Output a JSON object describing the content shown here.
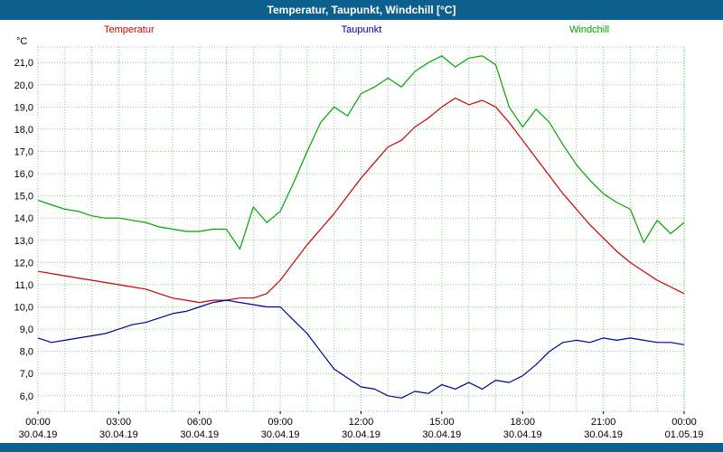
{
  "window": {
    "title": "Temperatur, Taupunkt, Windchill [°C]"
  },
  "colors": {
    "titlebar": "#0d5f8e",
    "grid": "#8cc88c",
    "plot_background": "#ffffff",
    "axis_text": "#000000"
  },
  "chart_data": {
    "type": "line",
    "title": "Temperatur, Taupunkt, Windchill [°C]",
    "ylabel": "°C",
    "xlabel": "",
    "grid": "on, dotted green, hourly vertical and 1°C horizontal",
    "legend_position": "top row: Temperatur left, Taupunkt center, Windchill right",
    "ylim": [
      5.3,
      21.7
    ],
    "xlim_hours": [
      0,
      24
    ],
    "yticks": [
      {
        "value": 21,
        "label": "21,0"
      },
      {
        "value": 20,
        "label": "20,0"
      },
      {
        "value": 19,
        "label": "19,0"
      },
      {
        "value": 18,
        "label": "18,0"
      },
      {
        "value": 17,
        "label": "17,0"
      },
      {
        "value": 16,
        "label": "16,0"
      },
      {
        "value": 15,
        "label": "15,0"
      },
      {
        "value": 14,
        "label": "14,0"
      },
      {
        "value": 13,
        "label": "13,0"
      },
      {
        "value": 12,
        "label": "12,0"
      },
      {
        "value": 11,
        "label": "11,0"
      },
      {
        "value": 10,
        "label": "10,0"
      },
      {
        "value": 9,
        "label": "9,0"
      },
      {
        "value": 8,
        "label": "8,0"
      },
      {
        "value": 7,
        "label": "7,0"
      },
      {
        "value": 6,
        "label": "6,0"
      }
    ],
    "xticks": [
      {
        "hour": 0,
        "time": "00:00",
        "date": "30.04.19"
      },
      {
        "hour": 3,
        "time": "03:00",
        "date": "30.04.19"
      },
      {
        "hour": 6,
        "time": "06:00",
        "date": "30.04.19"
      },
      {
        "hour": 9,
        "time": "09:00",
        "date": "30.04.19"
      },
      {
        "hour": 12,
        "time": "12:00",
        "date": "30.04.19"
      },
      {
        "hour": 15,
        "time": "15:00",
        "date": "30.04.19"
      },
      {
        "hour": 18,
        "time": "18:00",
        "date": "30.04.19"
      },
      {
        "hour": 21,
        "time": "21:00",
        "date": "30.04.19"
      },
      {
        "hour": 24,
        "time": "00:00",
        "date": "01.05.19"
      }
    ],
    "x": [
      0,
      0.5,
      1,
      1.5,
      2,
      2.5,
      3,
      3.5,
      4,
      4.5,
      5,
      5.5,
      6,
      6.5,
      7,
      7.5,
      8,
      8.5,
      9,
      9.5,
      10,
      10.5,
      11,
      11.5,
      12,
      12.5,
      13,
      13.5,
      14,
      14.5,
      15,
      15.5,
      16,
      16.5,
      17,
      17.5,
      18,
      18.5,
      19,
      19.5,
      20,
      20.5,
      21,
      21.5,
      22,
      22.5,
      23,
      23.5,
      24
    ],
    "series": [
      {
        "name": "Temperatur",
        "color": "#cc0000",
        "values": [
          11.6,
          11.5,
          11.4,
          11.3,
          11.2,
          11.1,
          11.0,
          10.9,
          10.8,
          10.6,
          10.4,
          10.3,
          10.2,
          10.3,
          10.3,
          10.4,
          10.4,
          10.6,
          11.2,
          12.0,
          12.8,
          13.5,
          14.2,
          15.0,
          15.8,
          16.5,
          17.2,
          17.5,
          18.1,
          18.5,
          19.0,
          19.4,
          19.1,
          19.3,
          19.0,
          18.3,
          17.5,
          16.7,
          15.9,
          15.1,
          14.4,
          13.7,
          13.1,
          12.5,
          12.0,
          11.6,
          11.2,
          10.9,
          10.6
        ]
      },
      {
        "name": "Taupunkt",
        "color": "#000099",
        "values": [
          8.6,
          8.4,
          8.5,
          8.6,
          8.7,
          8.8,
          9.0,
          9.2,
          9.3,
          9.5,
          9.7,
          9.8,
          10.0,
          10.2,
          10.3,
          10.2,
          10.1,
          10.0,
          10.0,
          9.4,
          8.8,
          8.0,
          7.2,
          6.8,
          6.4,
          6.3,
          6.0,
          5.9,
          6.2,
          6.1,
          6.5,
          6.3,
          6.6,
          6.3,
          6.7,
          6.6,
          6.9,
          7.4,
          8.0,
          8.4,
          8.5,
          8.4,
          8.6,
          8.5,
          8.6,
          8.5,
          8.4,
          8.4,
          8.3
        ]
      },
      {
        "name": "Windchill",
        "color": "#00a400",
        "values": [
          14.8,
          14.6,
          14.4,
          14.3,
          14.1,
          14.0,
          14.0,
          13.9,
          13.8,
          13.6,
          13.5,
          13.4,
          13.4,
          13.5,
          13.5,
          12.6,
          14.5,
          13.8,
          14.3,
          15.6,
          17.0,
          18.3,
          19.0,
          18.6,
          19.6,
          19.9,
          20.3,
          19.9,
          20.6,
          21.0,
          21.3,
          20.8,
          21.2,
          21.3,
          20.9,
          19.0,
          18.1,
          18.9,
          18.3,
          17.3,
          16.4,
          15.7,
          15.1,
          14.7,
          14.4,
          12.9,
          13.9,
          13.3,
          13.8
        ]
      }
    ]
  }
}
